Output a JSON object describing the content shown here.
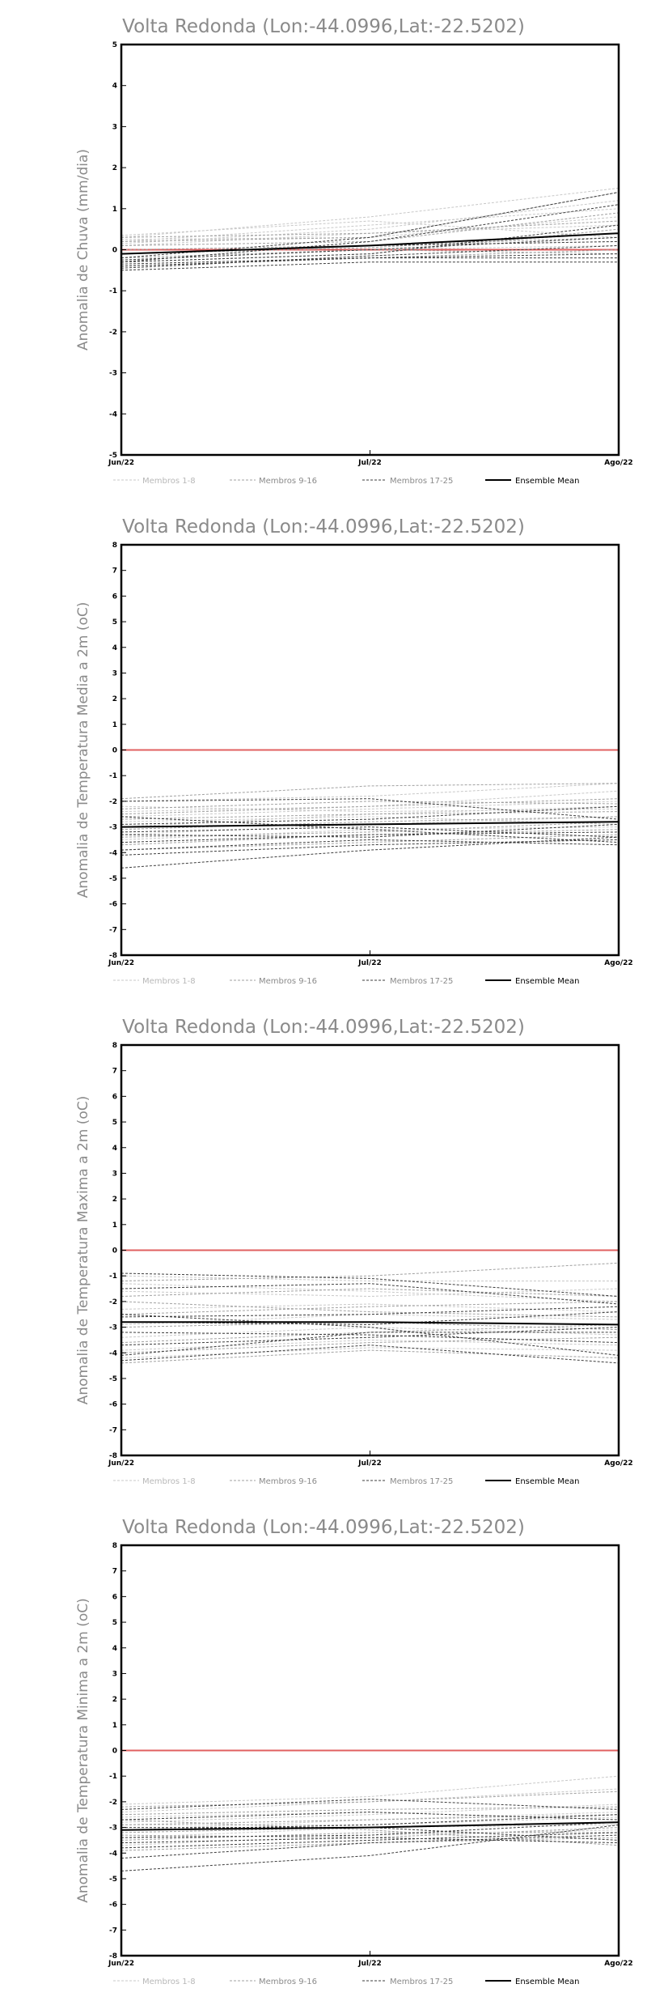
{
  "colors": {
    "membros_1_8": "#c8c8c8",
    "membros_9_16": "#a0a0a0",
    "membros_17_25": "#3c3c3c",
    "ensemble_mean": "#000000",
    "zero_line": "#e06060",
    "title": "#8a8a8a"
  },
  "legend": {
    "m1": "Membros 1-8",
    "m2": "Membros 9-16",
    "m3": "Membros 17-25",
    "mean": "Ensemble Mean"
  },
  "chart_data": [
    {
      "type": "line",
      "title": "Volta Redonda (Lon:-44.0996,Lat:-22.5202)",
      "ylabel": "Anomalia de Chuva (mm/dia)",
      "xlabel": "",
      "categories": [
        "Jun/22",
        "Jul/22",
        "Ago/22"
      ],
      "ylim": [
        -5,
        5
      ],
      "yticks": [
        "-5",
        "-4",
        "-3",
        "-2",
        "-1",
        "0",
        "1",
        "2",
        "3",
        "4",
        "5"
      ],
      "grid": false,
      "legend_position": "bottom",
      "zero_line": 0,
      "series": [
        {
          "group": "m1",
          "values": [
            0.3,
            0.8,
            1.5
          ]
        },
        {
          "group": "m1",
          "values": [
            0.2,
            0.6,
            1.0
          ]
        },
        {
          "group": "m1",
          "values": [
            0.1,
            0.4,
            0.6
          ]
        },
        {
          "group": "m1",
          "values": [
            0.35,
            0.7,
            0.3
          ]
        },
        {
          "group": "m1",
          "values": [
            -0.1,
            0.1,
            0.2
          ]
        },
        {
          "group": "m1",
          "values": [
            0.25,
            0.3,
            0.8
          ]
        },
        {
          "group": "m1",
          "values": [
            -0.2,
            0.0,
            0.1
          ]
        },
        {
          "group": "m1",
          "values": [
            0.15,
            0.5,
            1.2
          ]
        },
        {
          "group": "m2",
          "values": [
            0.2,
            0.3,
            1.4
          ]
        },
        {
          "group": "m2",
          "values": [
            -0.3,
            -0.1,
            0.5
          ]
        },
        {
          "group": "m2",
          "values": [
            0.1,
            0.2,
            0.9
          ]
        },
        {
          "group": "m2",
          "values": [
            -0.4,
            -0.2,
            0.0
          ]
        },
        {
          "group": "m2",
          "values": [
            0.0,
            0.1,
            0.3
          ]
        },
        {
          "group": "m2",
          "values": [
            -0.2,
            0.0,
            -0.1
          ]
        },
        {
          "group": "m2",
          "values": [
            0.3,
            0.4,
            0.7
          ]
        },
        {
          "group": "m2",
          "values": [
            -0.1,
            0.05,
            0.4
          ]
        },
        {
          "group": "m3",
          "values": [
            -0.2,
            0.3,
            1.4
          ]
        },
        {
          "group": "m3",
          "values": [
            -0.3,
            0.2,
            1.1
          ]
        },
        {
          "group": "m3",
          "values": [
            -0.4,
            -0.2,
            -0.2
          ]
        },
        {
          "group": "m3",
          "values": [
            -0.5,
            -0.3,
            -0.3
          ]
        },
        {
          "group": "m3",
          "values": [
            -0.3,
            -0.1,
            0.6
          ]
        },
        {
          "group": "m3",
          "values": [
            -0.1,
            0.1,
            0.2
          ]
        },
        {
          "group": "m3",
          "values": [
            -0.35,
            -0.2,
            -0.1
          ]
        },
        {
          "group": "m3",
          "values": [
            -0.25,
            0.0,
            0.3
          ]
        },
        {
          "group": "m3",
          "values": [
            -0.45,
            -0.15,
            0.1
          ]
        },
        {
          "group": "mean",
          "values": [
            -0.1,
            0.1,
            0.4
          ]
        }
      ]
    },
    {
      "type": "line",
      "title": "Volta Redonda (Lon:-44.0996,Lat:-22.5202)",
      "ylabel": "Anomalia de Temperatura Media a 2m (oC)",
      "xlabel": "",
      "categories": [
        "Jun/22",
        "Jul/22",
        "Ago/22"
      ],
      "ylim": [
        -8,
        8
      ],
      "yticks": [
        "-8",
        "-7",
        "-6",
        "-5",
        "-4",
        "-3",
        "-2",
        "-1",
        "0",
        "1",
        "2",
        "3",
        "4",
        "5",
        "6",
        "7",
        "8"
      ],
      "grid": false,
      "legend_position": "bottom",
      "zero_line": 0,
      "series": [
        {
          "group": "m1",
          "values": [
            -2.0,
            -1.8,
            -1.3
          ]
        },
        {
          "group": "m1",
          "values": [
            -2.4,
            -2.2,
            -1.6
          ]
        },
        {
          "group": "m1",
          "values": [
            -2.6,
            -2.3,
            -2.0
          ]
        },
        {
          "group": "m1",
          "values": [
            -3.0,
            -2.5,
            -2.2
          ]
        },
        {
          "group": "m1",
          "values": [
            -2.8,
            -2.6,
            -2.9
          ]
        },
        {
          "group": "m1",
          "values": [
            -3.3,
            -2.9,
            -2.6
          ]
        },
        {
          "group": "m1",
          "values": [
            -2.2,
            -2.4,
            -2.3
          ]
        },
        {
          "group": "m1",
          "values": [
            -3.5,
            -3.1,
            -3.0
          ]
        },
        {
          "group": "m2",
          "values": [
            -1.9,
            -1.4,
            -1.3
          ]
        },
        {
          "group": "m2",
          "values": [
            -2.3,
            -2.0,
            -2.1
          ]
        },
        {
          "group": "m2",
          "values": [
            -2.7,
            -2.5,
            -2.4
          ]
        },
        {
          "group": "m2",
          "values": [
            -3.1,
            -2.8,
            -2.6
          ]
        },
        {
          "group": "m2",
          "values": [
            -3.4,
            -3.2,
            -2.8
          ]
        },
        {
          "group": "m2",
          "values": [
            -3.7,
            -3.3,
            -3.1
          ]
        },
        {
          "group": "m2",
          "values": [
            -2.5,
            -2.2,
            -1.9
          ]
        },
        {
          "group": "m2",
          "values": [
            -3.9,
            -3.6,
            -3.3
          ]
        },
        {
          "group": "m3",
          "values": [
            -2.0,
            -1.9,
            -2.7
          ]
        },
        {
          "group": "m3",
          "values": [
            -2.9,
            -2.7,
            -2.2
          ]
        },
        {
          "group": "m3",
          "values": [
            -3.2,
            -3.0,
            -3.4
          ]
        },
        {
          "group": "m3",
          "values": [
            -3.6,
            -3.3,
            -3.2
          ]
        },
        {
          "group": "m3",
          "values": [
            -3.9,
            -3.5,
            -3.7
          ]
        },
        {
          "group": "m3",
          "values": [
            -4.1,
            -3.7,
            -3.5
          ]
        },
        {
          "group": "m3",
          "values": [
            -4.6,
            -3.9,
            -3.4
          ]
        },
        {
          "group": "m3",
          "values": [
            -2.6,
            -3.1,
            -3.6
          ]
        },
        {
          "group": "m3",
          "values": [
            -3.3,
            -3.4,
            -2.9
          ]
        },
        {
          "group": "mean",
          "values": [
            -3.0,
            -2.9,
            -2.8
          ]
        }
      ]
    },
    {
      "type": "line",
      "title": "Volta Redonda (Lon:-44.0996,Lat:-22.5202)",
      "ylabel": "Anomalia de Temperatura Maxima a 2m (oC)",
      "xlabel": "",
      "categories": [
        "Jun/22",
        "Jul/22",
        "Ago/22"
      ],
      "ylim": [
        -8,
        8
      ],
      "yticks": [
        "-8",
        "-7",
        "-6",
        "-5",
        "-4",
        "-3",
        "-2",
        "-1",
        "0",
        "1",
        "2",
        "3",
        "4",
        "5",
        "6",
        "7",
        "8"
      ],
      "grid": false,
      "legend_position": "bottom",
      "zero_line": 0,
      "series": [
        {
          "group": "m1",
          "values": [
            -1.0,
            -1.2,
            -1.2
          ]
        },
        {
          "group": "m1",
          "values": [
            -1.6,
            -1.8,
            -1.5
          ]
        },
        {
          "group": "m1",
          "values": [
            -2.3,
            -2.1,
            -2.4
          ]
        },
        {
          "group": "m1",
          "values": [
            -2.9,
            -2.5,
            -2.7
          ]
        },
        {
          "group": "m1",
          "values": [
            -3.4,
            -3.0,
            -3.3
          ]
        },
        {
          "group": "m1",
          "values": [
            -3.9,
            -3.5,
            -3.7
          ]
        },
        {
          "group": "m1",
          "values": [
            -1.3,
            -1.6,
            -2.0
          ]
        },
        {
          "group": "m1",
          "values": [
            -4.2,
            -3.8,
            -3.9
          ]
        },
        {
          "group": "m2",
          "values": [
            -1.2,
            -1.0,
            -0.5
          ]
        },
        {
          "group": "m2",
          "values": [
            -1.8,
            -1.5,
            -1.8
          ]
        },
        {
          "group": "m2",
          "values": [
            -2.5,
            -2.2,
            -2.0
          ]
        },
        {
          "group": "m2",
          "values": [
            -3.0,
            -2.8,
            -3.1
          ]
        },
        {
          "group": "m2",
          "values": [
            -3.6,
            -3.2,
            -2.9
          ]
        },
        {
          "group": "m2",
          "values": [
            -4.0,
            -3.6,
            -3.4
          ]
        },
        {
          "group": "m2",
          "values": [
            -2.0,
            -2.4,
            -2.6
          ]
        },
        {
          "group": "m2",
          "values": [
            -4.4,
            -3.9,
            -4.2
          ]
        },
        {
          "group": "m3",
          "values": [
            -0.9,
            -1.1,
            -1.8
          ]
        },
        {
          "group": "m3",
          "values": [
            -1.5,
            -1.3,
            -2.1
          ]
        },
        {
          "group": "m3",
          "values": [
            -2.6,
            -2.5,
            -2.2
          ]
        },
        {
          "group": "m3",
          "values": [
            -3.2,
            -3.3,
            -3.6
          ]
        },
        {
          "group": "m3",
          "values": [
            -3.7,
            -3.4,
            -3.0
          ]
        },
        {
          "group": "m3",
          "values": [
            -4.3,
            -3.7,
            -4.4
          ]
        },
        {
          "group": "m3",
          "values": [
            -2.5,
            -3.0,
            -4.1
          ]
        },
        {
          "group": "m3",
          "values": [
            -4.1,
            -3.2,
            -3.2
          ]
        },
        {
          "group": "m3",
          "values": [
            -2.8,
            -2.9,
            -2.4
          ]
        },
        {
          "group": "mean",
          "values": [
            -2.8,
            -2.8,
            -2.9
          ]
        }
      ]
    },
    {
      "type": "line",
      "title": "Volta Redonda (Lon:-44.0996,Lat:-22.5202)",
      "ylabel": "Anomalia de Temperatura Minima a 2m (oC)",
      "xlabel": "",
      "categories": [
        "Jun/22",
        "Jul/22",
        "Ago/22"
      ],
      "ylim": [
        -8,
        8
      ],
      "yticks": [
        "-8",
        "-7",
        "-6",
        "-5",
        "-4",
        "-3",
        "-2",
        "-1",
        "0",
        "1",
        "2",
        "3",
        "4",
        "5",
        "6",
        "7",
        "8"
      ],
      "grid": false,
      "legend_position": "bottom",
      "zero_line": 0,
      "series": [
        {
          "group": "m1",
          "values": [
            -2.1,
            -1.8,
            -1.0
          ]
        },
        {
          "group": "m1",
          "values": [
            -2.4,
            -2.0,
            -1.5
          ]
        },
        {
          "group": "m1",
          "values": [
            -2.8,
            -2.5,
            -2.1
          ]
        },
        {
          "group": "m1",
          "values": [
            -3.1,
            -2.7,
            -2.4
          ]
        },
        {
          "group": "m1",
          "values": [
            -3.4,
            -3.0,
            -2.9
          ]
        },
        {
          "group": "m1",
          "values": [
            -2.6,
            -2.4,
            -2.7
          ]
        },
        {
          "group": "m1",
          "values": [
            -3.7,
            -3.3,
            -3.1
          ]
        },
        {
          "group": "m1",
          "values": [
            -2.9,
            -2.9,
            -2.6
          ]
        },
        {
          "group": "m2",
          "values": [
            -2.2,
            -2.0,
            -1.6
          ]
        },
        {
          "group": "m2",
          "values": [
            -2.5,
            -2.3,
            -2.2
          ]
        },
        {
          "group": "m2",
          "values": [
            -2.9,
            -2.7,
            -2.5
          ]
        },
        {
          "group": "m2",
          "values": [
            -3.2,
            -3.0,
            -2.8
          ]
        },
        {
          "group": "m2",
          "values": [
            -3.5,
            -3.2,
            -3.2
          ]
        },
        {
          "group": "m2",
          "values": [
            -3.9,
            -3.6,
            -3.4
          ]
        },
        {
          "group": "m2",
          "values": [
            -2.7,
            -3.1,
            -3.7
          ]
        },
        {
          "group": "m2",
          "values": [
            -3.3,
            -3.4,
            -3.0
          ]
        },
        {
          "group": "m3",
          "values": [
            -2.3,
            -1.9,
            -2.3
          ]
        },
        {
          "group": "m3",
          "values": [
            -2.7,
            -2.4,
            -2.7
          ]
        },
        {
          "group": "m3",
          "values": [
            -3.0,
            -3.0,
            -3.5
          ]
        },
        {
          "group": "m3",
          "values": [
            -3.4,
            -3.3,
            -2.8
          ]
        },
        {
          "group": "m3",
          "values": [
            -3.8,
            -3.5,
            -3.2
          ]
        },
        {
          "group": "m3",
          "values": [
            -4.2,
            -3.6,
            -3.3
          ]
        },
        {
          "group": "m3",
          "values": [
            -4.7,
            -4.1,
            -2.9
          ]
        },
        {
          "group": "m3",
          "values": [
            -3.6,
            -3.4,
            -3.6
          ]
        },
        {
          "group": "m3",
          "values": [
            -3.1,
            -2.9,
            -2.5
          ]
        },
        {
          "group": "mean",
          "values": [
            -3.1,
            -3.0,
            -2.8
          ]
        }
      ]
    }
  ]
}
